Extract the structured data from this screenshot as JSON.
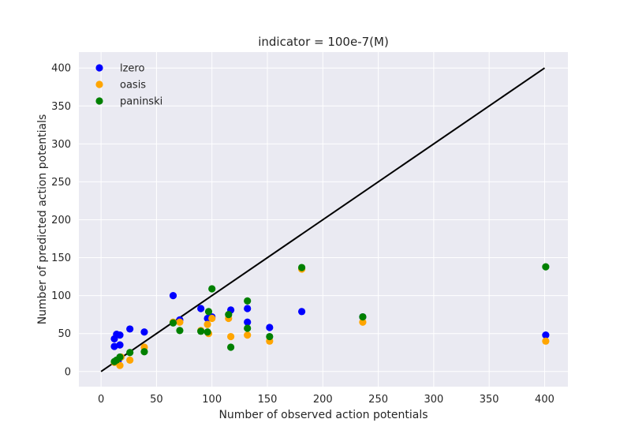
{
  "chart_data": {
    "type": "scatter",
    "title": "indicator = 100e-7(M)",
    "xlabel": "Number of observed action potentials",
    "ylabel": "Number of predicted action potentials",
    "xlim": [
      -20,
      421
    ],
    "ylim": [
      -20,
      421
    ],
    "xticks": [
      0,
      50,
      100,
      150,
      200,
      250,
      300,
      350,
      400
    ],
    "yticks": [
      0,
      50,
      100,
      150,
      200,
      250,
      300,
      350,
      400
    ],
    "grid": true,
    "legend_position": "top-left",
    "reference_line": {
      "x": [
        0,
        400
      ],
      "y": [
        0,
        400
      ],
      "color": "#000000"
    },
    "series": [
      {
        "name": "lzero",
        "color": "#0000ff",
        "points": [
          [
            12,
            43
          ],
          [
            12,
            33
          ],
          [
            14,
            49
          ],
          [
            17,
            48
          ],
          [
            17,
            35
          ],
          [
            16,
            16
          ],
          [
            13,
            13
          ],
          [
            26,
            56
          ],
          [
            39,
            52
          ],
          [
            65,
            100
          ],
          [
            71,
            68
          ],
          [
            90,
            83
          ],
          [
            96,
            70
          ],
          [
            100,
            72
          ],
          [
            117,
            81
          ],
          [
            132,
            83
          ],
          [
            132,
            65
          ],
          [
            152,
            58
          ],
          [
            181,
            79
          ],
          [
            236,
            72
          ],
          [
            401,
            48
          ]
        ]
      },
      {
        "name": "oasis",
        "color": "#ffa500",
        "points": [
          [
            12,
            12
          ],
          [
            17,
            8
          ],
          [
            18,
            19
          ],
          [
            26,
            15
          ],
          [
            39,
            32
          ],
          [
            65,
            65
          ],
          [
            71,
            65
          ],
          [
            90,
            54
          ],
          [
            96,
            62
          ],
          [
            97,
            50
          ],
          [
            100,
            70
          ],
          [
            115,
            70
          ],
          [
            117,
            46
          ],
          [
            132,
            48
          ],
          [
            152,
            40
          ],
          [
            181,
            135
          ],
          [
            236,
            65
          ],
          [
            401,
            40
          ]
        ]
      },
      {
        "name": "paninski",
        "color": "#008000",
        "points": [
          [
            12,
            13
          ],
          [
            14,
            15
          ],
          [
            17,
            19
          ],
          [
            26,
            25
          ],
          [
            39,
            26
          ],
          [
            65,
            64
          ],
          [
            71,
            54
          ],
          [
            90,
            53
          ],
          [
            96,
            52
          ],
          [
            97,
            79
          ],
          [
            100,
            109
          ],
          [
            115,
            75
          ],
          [
            117,
            32
          ],
          [
            132,
            93
          ],
          [
            132,
            57
          ],
          [
            152,
            46
          ],
          [
            181,
            137
          ],
          [
            236,
            72
          ],
          [
            401,
            138
          ]
        ]
      }
    ]
  }
}
